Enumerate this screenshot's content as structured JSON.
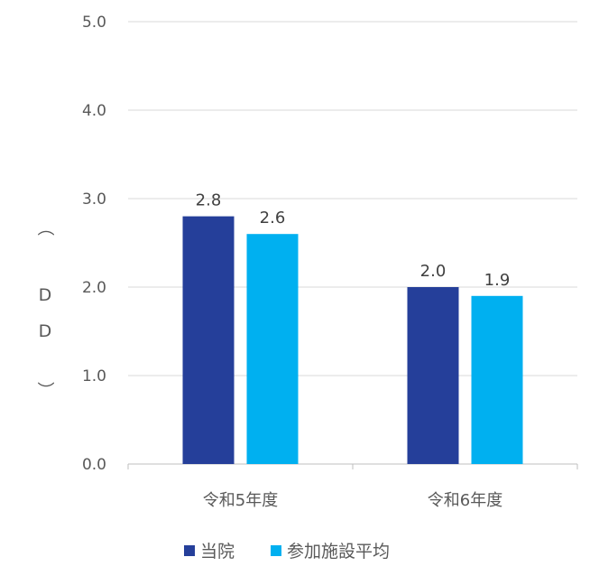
{
  "chart_data": {
    "type": "bar",
    "categories": [
      "令和5年度",
      "令和6年度"
    ],
    "series": [
      {
        "name": "当院",
        "values": [
          2.8,
          2.0
        ],
        "color": "#253F9A"
      },
      {
        "name": "参加施設平均",
        "values": [
          2.6,
          1.9
        ],
        "color": "#00B0F0"
      }
    ],
    "ylabel": "（DD）",
    "ylabel_chars": [
      "（",
      "D",
      "D",
      "）"
    ],
    "ylim": [
      0,
      5
    ],
    "yticks": [
      "0.0",
      "1.0",
      "2.0",
      "3.0",
      "4.0",
      "5.0"
    ],
    "data_labels": [
      [
        "2.8",
        "2.0"
      ],
      [
        "2.6",
        "1.9"
      ]
    ],
    "grid": true,
    "legend": "bottom"
  }
}
